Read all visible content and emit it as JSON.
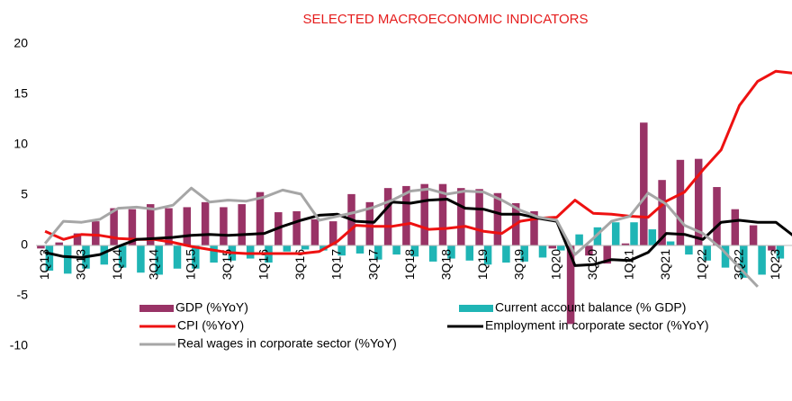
{
  "chart_data": {
    "type": "bar_line",
    "title": "SELECTED MACROECONOMIC INDICATORS",
    "categories": [
      "1Q13",
      null,
      "3Q13",
      null,
      "1Q14",
      null,
      "3Q14",
      null,
      "1Q15",
      null,
      "3Q15",
      null,
      "1Q16",
      null,
      "3Q16",
      null,
      "1Q17",
      null,
      "3Q17",
      null,
      "1Q18",
      null,
      "3Q18",
      null,
      "1Q19",
      null,
      "3Q19",
      null,
      "1Q20",
      null,
      "3Q20",
      null,
      "1Q21",
      null,
      "3Q21",
      null,
      "1Q22",
      null,
      "3Q22",
      null,
      "1Q23",
      null
    ],
    "ylim": [
      -10,
      20
    ],
    "yticks": [
      -10,
      -5,
      0,
      5,
      10,
      15,
      20
    ],
    "series": [
      {
        "name": "GDP (%YoY)",
        "kind": "bar",
        "color": "#993366",
        "values": [
          -0.3,
          0.3,
          1.2,
          2.4,
          3.7,
          3.6,
          4.1,
          3.7,
          3.8,
          4.3,
          3.8,
          4.1,
          5.3,
          3.3,
          3.4,
          2.6,
          2.4,
          5.1,
          4.3,
          5.7,
          5.9,
          6.1,
          6.1,
          5.7,
          5.6,
          5.2,
          4.2,
          3.4,
          -0.3,
          -7.8,
          -1.0,
          -1.8,
          0.2,
          12.2,
          6.5,
          8.5,
          8.6,
          5.8,
          3.6,
          2.0,
          -0.5,
          null
        ]
      },
      {
        "name": "Current account balance (% GDP)",
        "kind": "bar",
        "color": "#1fb5b5",
        "values": [
          -2.5,
          -2.8,
          -2.3,
          -1.9,
          -2.2,
          -2.7,
          -2.9,
          -2.3,
          -2.3,
          -1.7,
          -1.5,
          -1.3,
          -1.7,
          -0.6,
          -0.4,
          -0.5,
          -1.0,
          -0.8,
          -1.4,
          -0.9,
          -1.1,
          -1.6,
          -1.3,
          -1.5,
          -1.9,
          -1.7,
          -1.6,
          -1.2,
          -0.5,
          1.1,
          1.8,
          2.3,
          2.3,
          1.6,
          0.4,
          -0.9,
          -1.5,
          -2.2,
          -3.2,
          -2.9,
          -1.3,
          null
        ]
      },
      {
        "name": "CPI (%YoY)",
        "kind": "line",
        "color": "#ee1111",
        "values": [
          1.4,
          0.6,
          1.1,
          1.0,
          0.7,
          0.6,
          0.6,
          0.3,
          -0.1,
          -0.4,
          -0.7,
          -0.8,
          -0.8,
          -0.8,
          -0.8,
          -0.6,
          0.4,
          2.0,
          1.9,
          1.9,
          2.2,
          1.6,
          1.7,
          1.9,
          1.4,
          1.2,
          2.4,
          2.7,
          2.8,
          4.5,
          3.2,
          3.1,
          2.9,
          2.8,
          4.4,
          5.3,
          7.5,
          9.5,
          13.9,
          16.3,
          17.3,
          17.1
        ]
      },
      {
        "name": "Employment in corporate sector (%YoY)",
        "kind": "line",
        "color": "#000000",
        "values": [
          -0.7,
          -1.1,
          -1.2,
          -0.9,
          -0.1,
          0.6,
          0.7,
          0.8,
          1.0,
          1.1,
          1.0,
          1.1,
          1.2,
          1.9,
          2.5,
          3.0,
          3.1,
          2.4,
          2.3,
          4.3,
          4.2,
          4.5,
          4.6,
          3.7,
          3.6,
          3.1,
          3.1,
          2.7,
          2.4,
          -2.0,
          -1.9,
          -1.4,
          -1.5,
          -0.7,
          1.2,
          1.1,
          0.6,
          2.3,
          2.5,
          2.3,
          2.3,
          0.9
        ]
      },
      {
        "name": "Real wages in corporate sector (%YoY)",
        "kind": "line",
        "color": "#a6a6a6",
        "values": [
          0.2,
          2.4,
          2.3,
          2.6,
          3.7,
          3.8,
          3.6,
          4.0,
          5.7,
          4.3,
          4.5,
          4.4,
          4.8,
          5.5,
          5.1,
          2.5,
          2.9,
          3.3,
          3.8,
          4.5,
          5.4,
          5.6,
          5.1,
          5.4,
          5.3,
          4.5,
          3.5,
          2.8,
          2.5,
          -0.9,
          0.7,
          2.4,
          2.9,
          5.2,
          4.1,
          2.0,
          1.2,
          -0.3,
          -2.2,
          -4.1,
          null,
          null
        ]
      }
    ]
  }
}
